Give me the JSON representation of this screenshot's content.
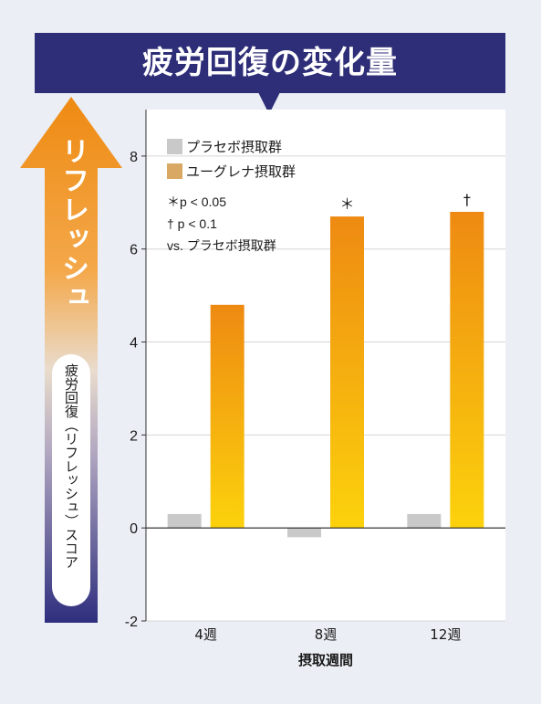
{
  "title": "疲労回復の変化量",
  "side": {
    "arrow_label": "リフレッシュ",
    "score_label": "疲労回復（リフレッシュ）スコア"
  },
  "colors": {
    "banner": "#2e2e78",
    "placebo": "#c9c9c9",
    "euglena_top": "#ee8a12",
    "euglena_bottom": "#fcd20c"
  },
  "chart_data": {
    "type": "bar",
    "categories": [
      "4週",
      "8週",
      "12週"
    ],
    "xlabel": "摂取週間",
    "ylabel": "",
    "ylim": [
      -2,
      9
    ],
    "yticks": [
      -2,
      0,
      2,
      4,
      6,
      8
    ],
    "grid": true,
    "legend_position": "top-left",
    "series": [
      {
        "name": "プラセボ摂取群",
        "values": [
          0.3,
          -0.2,
          0.3
        ]
      },
      {
        "name": "ユーグレナ摂取群",
        "values": [
          4.8,
          6.7,
          6.8
        ]
      }
    ],
    "significance": [
      "",
      "＊",
      "†"
    ],
    "annotations": [
      "＊p < 0.05",
      "† p < 0.1",
      "vs. プラセボ摂取群"
    ]
  }
}
